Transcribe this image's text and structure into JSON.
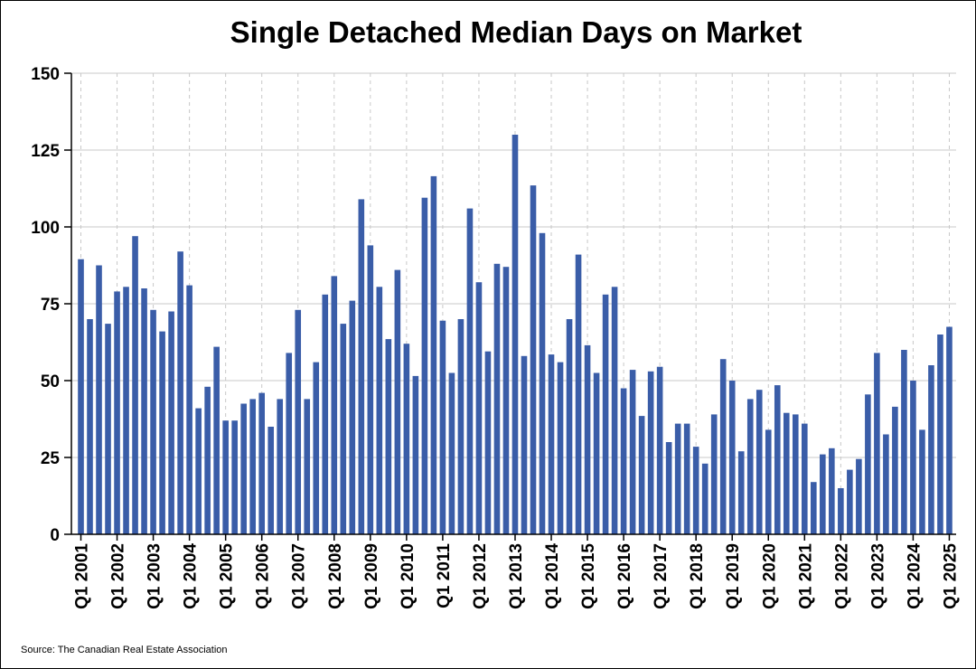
{
  "chart_data": {
    "type": "bar",
    "title": "Single Detached Median Days on Market",
    "source": "Source: The Canadian Real Estate Association",
    "ylim": [
      0,
      150
    ],
    "yticks": [
      0,
      25,
      50,
      75,
      100,
      125,
      150
    ],
    "grid": true,
    "bar_color": "#3a5da8",
    "x_tick_labels": [
      "Q1 2001",
      "Q1 2002",
      "Q1 2003",
      "Q1 2004",
      "Q1 2005",
      "Q1 2006",
      "Q1 2007",
      "Q1 2008",
      "Q1 2009",
      "Q1 2010",
      "Q1 2011",
      "Q1 2012",
      "Q1 2013",
      "Q1 2014",
      "Q1 2015",
      "Q1 2016",
      "Q1 2017",
      "Q1 2018",
      "Q1 2019",
      "Q1 2020",
      "Q1 2021",
      "Q1 2022",
      "Q1 2023",
      "Q1 2024",
      "Q1 2025"
    ],
    "categories": [
      "Q1 2001",
      "Q2 2001",
      "Q3 2001",
      "Q4 2001",
      "Q1 2002",
      "Q2 2002",
      "Q3 2002",
      "Q4 2002",
      "Q1 2003",
      "Q2 2003",
      "Q3 2003",
      "Q4 2003",
      "Q1 2004",
      "Q2 2004",
      "Q3 2004",
      "Q4 2004",
      "Q1 2005",
      "Q2 2005",
      "Q3 2005",
      "Q4 2005",
      "Q1 2006",
      "Q2 2006",
      "Q3 2006",
      "Q4 2006",
      "Q1 2007",
      "Q2 2007",
      "Q3 2007",
      "Q4 2007",
      "Q1 2008",
      "Q2 2008",
      "Q3 2008",
      "Q4 2008",
      "Q1 2009",
      "Q2 2009",
      "Q3 2009",
      "Q4 2009",
      "Q1 2010",
      "Q2 2010",
      "Q3 2010",
      "Q4 2010",
      "Q1 2011",
      "Q2 2011",
      "Q3 2011",
      "Q4 2011",
      "Q1 2012",
      "Q2 2012",
      "Q3 2012",
      "Q4 2012",
      "Q1 2013",
      "Q2 2013",
      "Q3 2013",
      "Q4 2013",
      "Q1 2014",
      "Q2 2014",
      "Q3 2014",
      "Q4 2014",
      "Q1 2015",
      "Q2 2015",
      "Q3 2015",
      "Q4 2015",
      "Q1 2016",
      "Q2 2016",
      "Q3 2016",
      "Q4 2016",
      "Q1 2017",
      "Q2 2017",
      "Q3 2017",
      "Q4 2017",
      "Q1 2018",
      "Q2 2018",
      "Q3 2018",
      "Q4 2018",
      "Q1 2019",
      "Q2 2019",
      "Q3 2019",
      "Q4 2019",
      "Q1 2020",
      "Q2 2020",
      "Q3 2020",
      "Q4 2020",
      "Q1 2021",
      "Q2 2021",
      "Q3 2021",
      "Q4 2021",
      "Q1 2022",
      "Q2 2022",
      "Q3 2022",
      "Q4 2022",
      "Q1 2023",
      "Q2 2023",
      "Q3 2023",
      "Q4 2023",
      "Q1 2024",
      "Q2 2024",
      "Q3 2024",
      "Q4 2024",
      "Q1 2025"
    ],
    "values": [
      89.5,
      70,
      87.5,
      68.5,
      79,
      80.5,
      97,
      80,
      73,
      66,
      72.5,
      92,
      81,
      41,
      48,
      61,
      37,
      37,
      42.5,
      44,
      46,
      35,
      44,
      59,
      73,
      44,
      56,
      78,
      84,
      68.5,
      76,
      109,
      94,
      80.5,
      63.5,
      86,
      62,
      51.5,
      109.5,
      116.5,
      69.5,
      52.5,
      70,
      106,
      82,
      59.5,
      88,
      87,
      130,
      58,
      113.5,
      98,
      58.5,
      56,
      70,
      91,
      61.5,
      52.5,
      78,
      80.5,
      47.5,
      53.5,
      38.5,
      53,
      54.5,
      30,
      36,
      36,
      28.5,
      23,
      39,
      57,
      50,
      27,
      44,
      47,
      34,
      48.5,
      39.5,
      39,
      36,
      17,
      26,
      28,
      15,
      21,
      24.5,
      45.5,
      59,
      32.5,
      41.5,
      60,
      50,
      34,
      55,
      65,
      67.5
    ]
  }
}
